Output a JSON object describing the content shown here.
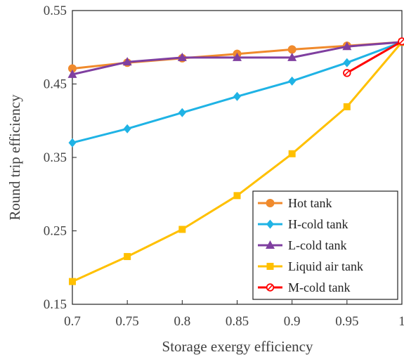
{
  "chart_data": {
    "type": "line",
    "title": "",
    "xlabel": "Storage exergy efficiency",
    "ylabel": "Round trip efficiency",
    "xlim": [
      0.7,
      1.0
    ],
    "ylim": [
      0.15,
      0.55
    ],
    "x_ticks": [
      "0.7",
      "0.75",
      "0.8",
      "0.85",
      "0.9",
      "0.95",
      "1"
    ],
    "y_ticks": [
      "0.15",
      "0.25",
      "0.35",
      "0.45",
      "0.55"
    ],
    "grid": false,
    "legend_position": "bottom-right",
    "series": [
      {
        "name": "Hot tank",
        "color": "#F08A2C",
        "marker": "circle",
        "x": [
          0.7,
          0.75,
          0.8,
          0.85,
          0.9,
          0.95,
          1.0
        ],
        "y": [
          0.471,
          0.479,
          0.485,
          0.491,
          0.497,
          0.502,
          0.507
        ]
      },
      {
        "name": "H-cold tank",
        "color": "#1FB3E5",
        "marker": "diamond",
        "x": [
          0.7,
          0.75,
          0.8,
          0.85,
          0.9,
          0.95,
          1.0
        ],
        "y": [
          0.37,
          0.389,
          0.411,
          0.433,
          0.454,
          0.479,
          0.507
        ]
      },
      {
        "name": "L-cold tank",
        "color": "#7F3FA0",
        "marker": "triangle",
        "x": [
          0.7,
          0.75,
          0.8,
          0.85,
          0.9,
          0.95,
          1.0
        ],
        "y": [
          0.463,
          0.48,
          0.486,
          0.486,
          0.486,
          0.501,
          0.507
        ]
      },
      {
        "name": "Liquid air tank",
        "color": "#FFC000",
        "marker": "square",
        "x": [
          0.7,
          0.75,
          0.8,
          0.85,
          0.9,
          0.95,
          1.0
        ],
        "y": [
          0.181,
          0.215,
          0.252,
          0.298,
          0.355,
          0.419,
          0.507
        ]
      },
      {
        "name": "M-cold tank",
        "color": "#FF0000",
        "marker": "circle-open",
        "x": [
          0.95,
          1.0
        ],
        "y": [
          0.465,
          0.508
        ]
      }
    ]
  }
}
